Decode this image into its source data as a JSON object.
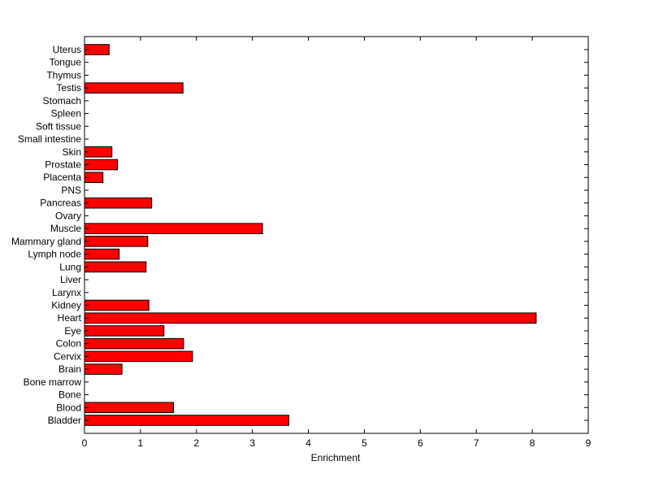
{
  "chart_data": {
    "type": "bar",
    "orientation": "horizontal",
    "xlabel": "Enrichment",
    "ylabel": "",
    "title": "",
    "xlim": [
      0,
      9
    ],
    "x_ticks": [
      "0",
      "1",
      "2",
      "3",
      "4",
      "5",
      "6",
      "7",
      "8",
      "9"
    ],
    "grid": false,
    "legend": "none",
    "bar_color": "#ff0000",
    "categories": [
      "Bladder",
      "Blood",
      "Bone",
      "Bone marrow",
      "Brain",
      "Cervix",
      "Colon",
      "Eye",
      "Heart",
      "Kidney",
      "Larynx",
      "Liver",
      "Lung",
      "Lymph node",
      "Mammary gland",
      "Muscle",
      "Ovary",
      "Pancreas",
      "PNS",
      "Placenta",
      "Prostate",
      "Skin",
      "Small intestine",
      "Soft tissue",
      "Spleen",
      "Stomach",
      "Testis",
      "Thymus",
      "Tongue",
      "Uterus"
    ],
    "values": [
      3.65,
      1.59,
      0,
      0,
      0.67,
      1.93,
      1.77,
      1.42,
      8.07,
      1.15,
      0,
      0,
      1.1,
      0.62,
      1.13,
      3.18,
      0,
      1.2,
      0,
      0.33,
      0.59,
      0.49,
      0,
      0,
      0,
      0,
      1.76,
      0,
      0,
      0.44
    ]
  }
}
